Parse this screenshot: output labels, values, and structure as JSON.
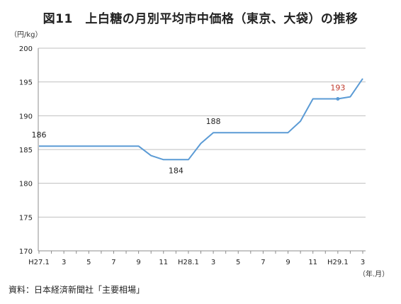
{
  "title": "図11　上白糖の月別平均市中価格（東京、大袋）の推移",
  "source": "資料：日本経済新聞社「主要相場」",
  "chart_data": {
    "type": "line",
    "title": "図11　上白糖の月別平均市中価格（東京、大袋）の推移",
    "ylabel": "（円/kg）",
    "xlabel": "（年.月）",
    "ylim": [
      170,
      200
    ],
    "yticks": [
      170,
      175,
      180,
      185,
      190,
      195,
      200
    ],
    "grid": true,
    "legend": "none",
    "line_color": "#5b9bd5",
    "label_color_default": "#222222",
    "label_color_highlight": "#c0392b",
    "categories": [
      "H27.1",
      "2",
      "3",
      "4",
      "5",
      "6",
      "7",
      "8",
      "9",
      "10",
      "11",
      "12",
      "H28.1",
      "2",
      "3",
      "4",
      "5",
      "6",
      "7",
      "8",
      "9",
      "10",
      "11",
      "12",
      "H29.1",
      "2",
      "3"
    ],
    "xtick_labels": [
      "H27.1",
      "",
      "3",
      "",
      "5",
      "",
      "7",
      "",
      "9",
      "",
      "11",
      "",
      "H28.1",
      "",
      "3",
      "",
      "5",
      "",
      "7",
      "",
      "9",
      "",
      "11",
      "",
      "H29.1",
      "",
      "3"
    ],
    "series": [
      {
        "values": [
          185.5,
          185.5,
          185.5,
          185.5,
          185.5,
          185.5,
          185.5,
          185.5,
          185.5,
          184.1,
          183.5,
          183.5,
          183.5,
          185.9,
          187.5,
          187.5,
          187.5,
          187.5,
          187.5,
          187.5,
          187.5,
          189.2,
          192.5,
          192.5,
          192.5,
          192.8,
          195.5
        ]
      }
    ],
    "annotations": [
      {
        "index": 0,
        "text": "186",
        "position": "above",
        "highlight": false
      },
      {
        "index": 11,
        "text": "184",
        "position": "below",
        "highlight": false
      },
      {
        "index": 14,
        "text": "188",
        "position": "above",
        "highlight": false
      },
      {
        "index": 24,
        "text": "193",
        "position": "above",
        "highlight": true,
        "marker": true
      }
    ]
  }
}
